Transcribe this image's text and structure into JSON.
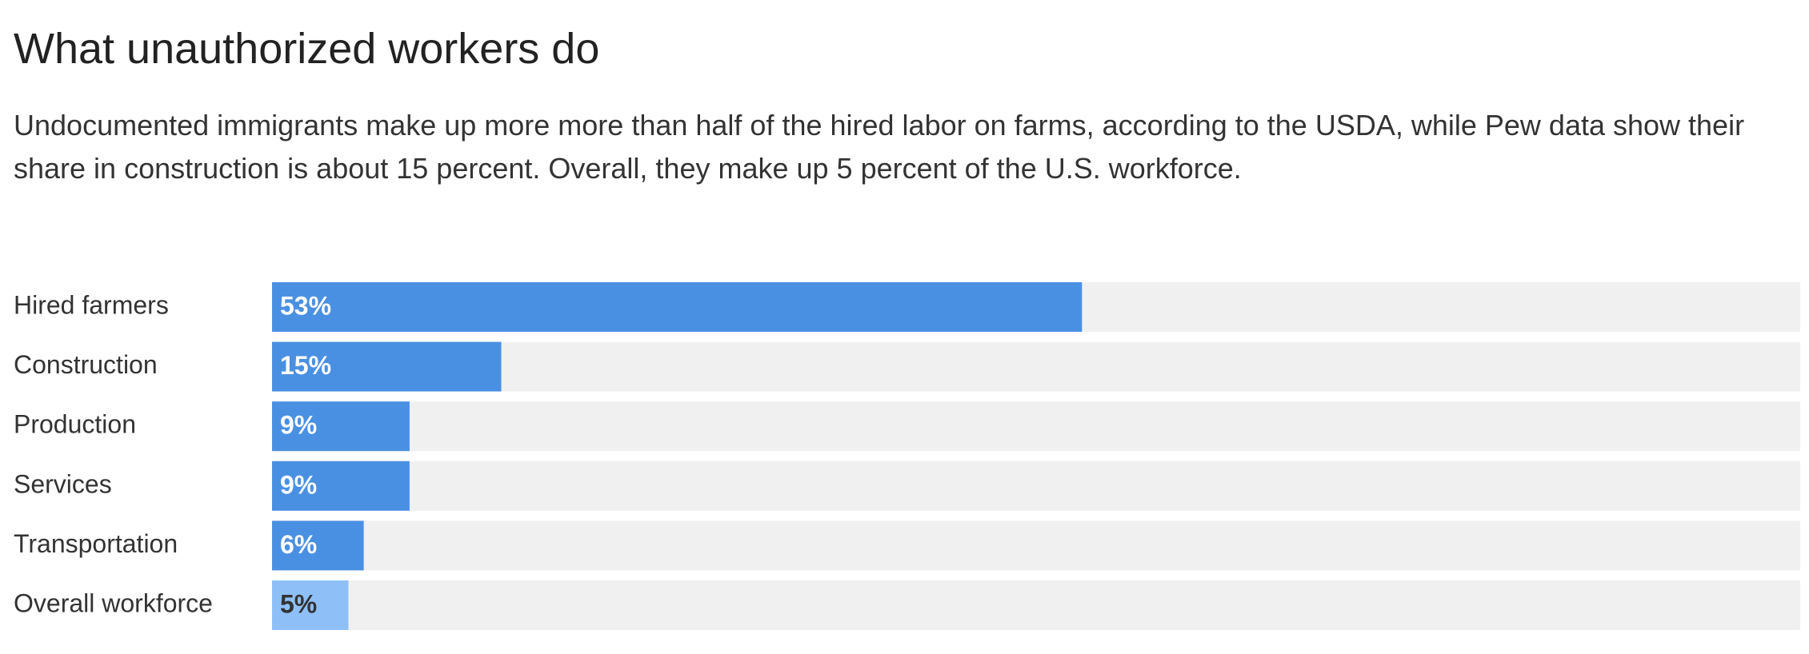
{
  "chart_data": {
    "type": "bar",
    "orientation": "horizontal",
    "title": "What unauthorized workers do",
    "subtitle": "Undocumented immigrants make up more more than half of the hired labor on farms, according to the USDA, while Pew data show their share in construction is about 15 percent. Overall, they make up 5 percent of the U.S. workforce.",
    "categories": [
      "Hired farmers",
      "Construction",
      "Production",
      "Services",
      "Transportation",
      "Overall workforce"
    ],
    "values": [
      53,
      15,
      9,
      9,
      6,
      5
    ],
    "value_labels": [
      "53%",
      "15%",
      "9%",
      "9%",
      "6%",
      "5%"
    ],
    "colors": [
      "#4a90e2",
      "#4a90e2",
      "#4a90e2",
      "#4a90e2",
      "#4a90e2",
      "#8ec0f7"
    ],
    "xlim": [
      0,
      100
    ]
  }
}
